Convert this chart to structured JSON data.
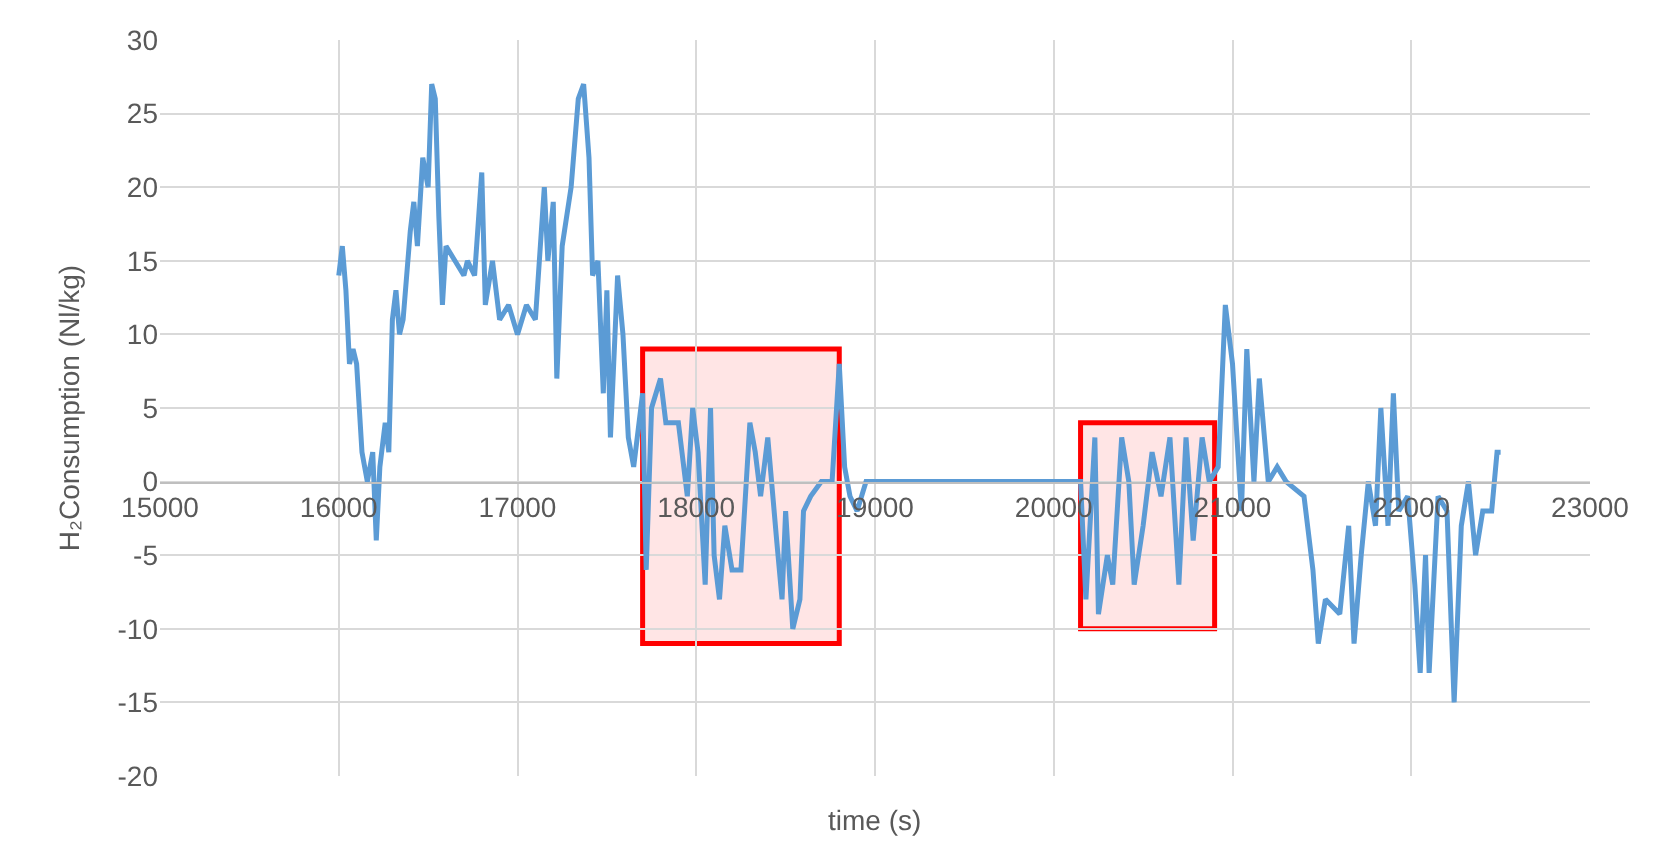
{
  "chart_data": {
    "type": "line",
    "xlabel": "time (s)",
    "ylabel": "H₂Consumption (Nl/kg)",
    "xlim": [
      15000,
      23000
    ],
    "xticks": [
      15000,
      16000,
      17000,
      18000,
      19000,
      20000,
      21000,
      22000,
      23000
    ],
    "ylim": [
      -20,
      30
    ],
    "yticks": [
      -20,
      -15,
      -10,
      -5,
      0,
      5,
      10,
      15,
      20,
      25,
      30
    ],
    "grid": true,
    "marker": "none",
    "line_style": "solid",
    "series": [
      {
        "color": "#5b9bd5",
        "x": [
          16000,
          16020,
          16040,
          16060,
          16080,
          16100,
          16130,
          16160,
          16190,
          16210,
          16230,
          16260,
          16280,
          16300,
          16320,
          16340,
          16360,
          16400,
          16420,
          16440,
          16470,
          16500,
          16520,
          16540,
          16560,
          16580,
          16600,
          16650,
          16700,
          16720,
          16760,
          16800,
          16820,
          16860,
          16900,
          16950,
          17000,
          17050,
          17100,
          17150,
          17170,
          17200,
          17220,
          17250,
          17300,
          17340,
          17370,
          17400,
          17420,
          17450,
          17480,
          17500,
          17520,
          17560,
          17590,
          17620,
          17650,
          17700,
          17720,
          17750,
          17800,
          17830,
          17900,
          17950,
          17980,
          18010,
          18050,
          18080,
          18100,
          18130,
          18160,
          18200,
          18250,
          18300,
          18330,
          18360,
          18400,
          18450,
          18480,
          18500,
          18540,
          18580,
          18600,
          18640,
          18700,
          18760,
          18800,
          18830,
          18860,
          18900,
          18950,
          20150,
          20180,
          20230,
          20250,
          20300,
          20330,
          20380,
          20420,
          20450,
          20500,
          20550,
          20600,
          20650,
          20700,
          20740,
          20780,
          20830,
          20870,
          20920,
          20960,
          21000,
          21050,
          21080,
          21120,
          21150,
          21200,
          21250,
          21300,
          21400,
          21450,
          21480,
          21520,
          21600,
          21650,
          21680,
          21720,
          21760,
          21800,
          21830,
          21870,
          21900,
          21930,
          21980,
          22020,
          22050,
          22080,
          22100,
          22150,
          22200,
          22240,
          22280,
          22320,
          22360,
          22400,
          22450,
          22480,
          22500
        ],
        "values": [
          14,
          16,
          13,
          8,
          9,
          8,
          2,
          0,
          2,
          -4,
          1,
          4,
          2,
          11,
          13,
          10,
          11,
          17,
          19,
          16,
          22,
          20,
          27,
          26,
          18,
          12,
          16,
          15,
          14,
          15,
          14,
          21,
          12,
          15,
          11,
          12,
          10,
          12,
          11,
          20,
          15,
          19,
          7,
          16,
          20,
          26,
          27,
          22,
          14,
          15,
          6,
          13,
          3,
          14,
          10,
          3,
          1,
          6,
          -6,
          5,
          7,
          4,
          4,
          -1,
          5,
          2,
          -7,
          5,
          -5,
          -8,
          -3,
          -6,
          -6,
          4,
          2,
          -1,
          3,
          -4,
          -8,
          -2,
          -10,
          -8,
          -2,
          -1,
          0,
          0,
          8,
          1,
          -1,
          -2,
          0,
          0,
          -8,
          3,
          -9,
          -5,
          -7,
          3,
          0,
          -7,
          -3,
          2,
          -1,
          3,
          -7,
          3,
          -4,
          3,
          0,
          1,
          12,
          8,
          -2,
          9,
          0,
          7,
          0,
          1,
          0,
          -1,
          -6,
          -11,
          -8,
          -9,
          -3,
          -11,
          -5,
          0,
          -3,
          5,
          -3,
          6,
          -2,
          -1,
          -7,
          -13,
          -5,
          -13,
          -1,
          -2,
          -15,
          -3,
          0,
          -5,
          -2,
          -2,
          2,
          2
        ]
      }
    ],
    "bands": [
      {
        "axis": "x",
        "from": 17700,
        "to": 18800,
        "color": "#ff0000"
      },
      {
        "axis": "x",
        "from": 20150,
        "to": 20900,
        "color": "#ff0000"
      }
    ]
  }
}
